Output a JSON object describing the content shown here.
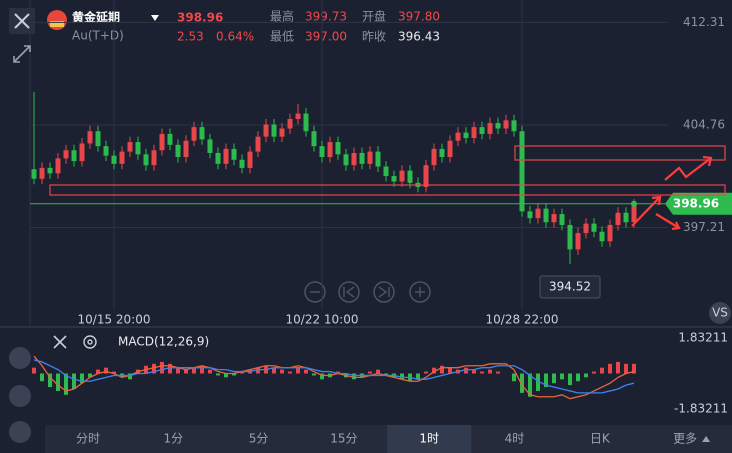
{
  "header": {
    "name": "黄金延期",
    "code": "Au(T+D)",
    "price": "398.96",
    "change": "2.53",
    "change_pct": "0.64%",
    "high_label": "最高",
    "high": "399.73",
    "open_label": "开盘",
    "open": "397.80",
    "low_label": "最低",
    "low": "397.00",
    "prev_close_label": "昨收",
    "prev_close": "396.43"
  },
  "chart_data": [
    {
      "type": "candlestick",
      "categories": [
        null,
        null,
        null,
        null,
        null,
        null,
        null,
        null,
        null,
        null,
        "10/15 20:00",
        null,
        null,
        null,
        null,
        null,
        null,
        null,
        null,
        null,
        null,
        null,
        null,
        null,
        null,
        null,
        null,
        null,
        null,
        null,
        null,
        null,
        null,
        null,
        null,
        null,
        "10/22 10:00",
        null,
        null,
        null,
        null,
        null,
        null,
        null,
        null,
        null,
        null,
        null,
        null,
        null,
        null,
        null,
        null,
        null,
        null,
        null,
        null,
        null,
        null,
        null,
        null,
        "10/28 22:00",
        null,
        null,
        null,
        null,
        null,
        null,
        null,
        null,
        null,
        null,
        null,
        null,
        null,
        null
      ],
      "ohlc": [
        [
          401.5,
          407.2,
          400.4,
          400.8
        ],
        [
          400.8,
          402.0,
          400.4,
          401.6
        ],
        [
          401.6,
          402.0,
          400.8,
          401.2
        ],
        [
          401.2,
          402.7,
          400.8,
          402.3
        ],
        [
          402.3,
          403.3,
          401.9,
          402.9
        ],
        [
          402.9,
          403.3,
          401.7,
          402.1
        ],
        [
          402.1,
          403.8,
          401.7,
          403.4
        ],
        [
          403.4,
          404.7,
          403.0,
          404.3
        ],
        [
          404.3,
          404.7,
          402.8,
          403.2
        ],
        [
          403.2,
          403.6,
          402.1,
          402.5
        ],
        [
          402.5,
          402.9,
          401.5,
          401.9
        ],
        [
          401.9,
          403.2,
          401.5,
          402.8
        ],
        [
          402.8,
          403.9,
          402.4,
          403.5
        ],
        [
          403.5,
          403.9,
          402.2,
          402.6
        ],
        [
          402.6,
          403.0,
          401.4,
          401.8
        ],
        [
          401.8,
          403.3,
          401.4,
          402.9
        ],
        [
          402.9,
          404.5,
          402.5,
          404.1
        ],
        [
          404.1,
          404.5,
          402.9,
          403.3
        ],
        [
          403.3,
          403.7,
          402.0,
          402.4
        ],
        [
          402.4,
          404.0,
          402.0,
          403.6
        ],
        [
          403.6,
          405.0,
          403.2,
          404.6
        ],
        [
          404.6,
          405.0,
          403.3,
          403.7
        ],
        [
          403.7,
          404.1,
          402.3,
          402.7
        ],
        [
          402.7,
          403.1,
          401.5,
          401.9
        ],
        [
          401.9,
          403.4,
          401.5,
          403.0
        ],
        [
          403.0,
          403.4,
          401.8,
          402.2
        ],
        [
          402.2,
          402.6,
          401.2,
          401.6
        ],
        [
          401.6,
          403.2,
          401.2,
          402.8
        ],
        [
          402.8,
          404.3,
          402.4,
          403.9
        ],
        [
          403.9,
          405.2,
          403.5,
          404.8
        ],
        [
          404.8,
          405.2,
          403.5,
          403.9
        ],
        [
          403.9,
          404.9,
          403.5,
          404.5
        ],
        [
          404.5,
          405.6,
          404.1,
          405.2
        ],
        [
          405.2,
          406.3,
          404.8,
          405.6
        ],
        [
          405.6,
          406.0,
          403.9,
          404.3
        ],
        [
          404.3,
          404.7,
          402.8,
          403.2
        ],
        [
          403.2,
          403.6,
          402.0,
          402.4
        ],
        [
          402.4,
          403.9,
          402.0,
          403.5
        ],
        [
          403.5,
          403.9,
          402.2,
          402.6
        ],
        [
          402.6,
          403.0,
          401.4,
          401.8
        ],
        [
          401.8,
          403.1,
          401.4,
          402.7
        ],
        [
          402.7,
          403.1,
          401.5,
          401.9
        ],
        [
          401.9,
          403.2,
          401.5,
          402.8
        ],
        [
          402.8,
          403.2,
          401.3,
          401.7
        ],
        [
          401.7,
          402.1,
          400.6,
          401.0
        ],
        [
          401.0,
          401.4,
          400.2,
          400.6
        ],
        [
          400.6,
          401.8,
          400.2,
          401.4
        ],
        [
          401.4,
          401.8,
          400.1,
          400.5
        ],
        [
          400.5,
          400.9,
          399.8,
          400.2
        ],
        [
          400.2,
          402.2,
          399.8,
          401.8
        ],
        [
          401.8,
          403.4,
          401.4,
          403.0
        ],
        [
          403.0,
          403.4,
          402.0,
          402.4
        ],
        [
          402.4,
          404.0,
          402.0,
          403.6
        ],
        [
          403.6,
          404.6,
          403.2,
          404.2
        ],
        [
          404.2,
          404.6,
          403.4,
          403.8
        ],
        [
          403.8,
          405.0,
          403.4,
          404.6
        ],
        [
          404.6,
          405.0,
          403.7,
          404.1
        ],
        [
          404.1,
          405.3,
          403.7,
          404.9
        ],
        [
          404.9,
          405.3,
          404.1,
          404.5
        ],
        [
          404.5,
          405.5,
          404.1,
          405.1
        ],
        [
          405.1,
          405.5,
          403.9,
          404.3
        ],
        [
          404.3,
          404.7,
          398.0,
          398.4
        ],
        [
          398.4,
          398.8,
          397.5,
          397.9
        ],
        [
          397.9,
          399.0,
          397.5,
          398.6
        ],
        [
          398.6,
          399.0,
          397.2,
          397.6
        ],
        [
          397.6,
          398.6,
          397.2,
          398.2
        ],
        [
          398.2,
          398.6,
          397.0,
          397.4
        ],
        [
          397.4,
          397.8,
          394.52,
          395.6
        ],
        [
          395.6,
          397.2,
          395.2,
          396.8
        ],
        [
          396.8,
          397.9,
          396.4,
          397.5
        ],
        [
          397.5,
          397.9,
          396.5,
          396.9
        ],
        [
          396.9,
          397.3,
          395.8,
          396.2
        ],
        [
          396.2,
          397.8,
          395.8,
          397.4
        ],
        [
          397.4,
          398.7,
          397.0,
          398.3
        ],
        [
          398.3,
          398.7,
          397.2,
          397.6
        ],
        [
          397.6,
          399.3,
          397.2,
          398.96
        ]
      ],
      "up_color": "#e8464a",
      "down_color": "#2dbb4e",
      "ylim": [
        391.14,
        413.96
      ],
      "yticks": [
        397.21,
        404.76,
        412.31
      ],
      "grid": true
    },
    {
      "type": "macd",
      "title": "MACD(12,26,9)",
      "histogram": [
        0.3,
        -0.4,
        -0.7,
        -0.9,
        -1.1,
        -0.8,
        -0.5,
        -0.2,
        0.2,
        0.3,
        0.1,
        -0.2,
        -0.3,
        0.2,
        0.4,
        0.5,
        0.6,
        0.5,
        0.3,
        0.2,
        0.3,
        0.4,
        0.2,
        -0.1,
        -0.2,
        -0.1,
        0.1,
        0.2,
        0.3,
        0.4,
        0.3,
        0.2,
        0.1,
        0.3,
        0.2,
        -0.1,
        -0.3,
        -0.2,
        0.1,
        -0.2,
        -0.3,
        -0.2,
        0.1,
        0.2,
        -0.1,
        -0.2,
        -0.3,
        -0.4,
        -0.3,
        0.1,
        0.3,
        0.4,
        0.3,
        0.2,
        0.3,
        0.2,
        0.1,
        0.2,
        0.1,
        0.0,
        -0.4,
        -1.0,
        -1.2,
        -0.9,
        -0.7,
        -0.5,
        -0.3,
        -0.6,
        -0.4,
        -0.2,
        0.1,
        0.3,
        0.5,
        0.6,
        0.5,
        0.5
      ],
      "series": [
        {
          "color": "#e8663c",
          "values": [
            0.9,
            0.4,
            -0.2,
            -0.6,
            -0.9,
            -0.8,
            -0.5,
            -0.2,
            0.0,
            0.1,
            0.0,
            -0.2,
            -0.1,
            0.1,
            0.2,
            0.3,
            0.4,
            0.4,
            0.3,
            0.2,
            0.3,
            0.4,
            0.3,
            0.1,
            0.0,
            0.0,
            0.1,
            0.2,
            0.3,
            0.4,
            0.4,
            0.3,
            0.3,
            0.4,
            0.3,
            0.1,
            -0.1,
            -0.1,
            0.0,
            -0.1,
            -0.2,
            -0.2,
            -0.1,
            0.0,
            -0.1,
            -0.2,
            -0.3,
            -0.4,
            -0.4,
            -0.2,
            0.1,
            0.3,
            0.3,
            0.3,
            0.4,
            0.4,
            0.4,
            0.5,
            0.5,
            0.5,
            0.2,
            -0.6,
            -1.1,
            -1.2,
            -1.2,
            -1.2,
            -1.1,
            -1.3,
            -1.2,
            -1.1,
            -0.9,
            -0.7,
            -0.5,
            -0.2,
            0.0,
            0.1
          ]
        },
        {
          "color": "#3f82ee",
          "values": [
            0.7,
            0.6,
            0.4,
            0.2,
            -0.1,
            -0.3,
            -0.4,
            -0.4,
            -0.3,
            -0.2,
            -0.1,
            -0.1,
            -0.1,
            0.0,
            0.0,
            0.1,
            0.2,
            0.3,
            0.3,
            0.3,
            0.3,
            0.3,
            0.3,
            0.2,
            0.2,
            0.1,
            0.1,
            0.1,
            0.2,
            0.2,
            0.3,
            0.3,
            0.3,
            0.3,
            0.3,
            0.2,
            0.1,
            0.1,
            0.0,
            0.0,
            -0.1,
            -0.1,
            -0.1,
            -0.1,
            -0.1,
            -0.1,
            -0.2,
            -0.2,
            -0.3,
            -0.3,
            -0.2,
            -0.1,
            0.0,
            0.1,
            0.2,
            0.2,
            0.3,
            0.3,
            0.4,
            0.4,
            0.4,
            0.2,
            -0.1,
            -0.4,
            -0.6,
            -0.7,
            -0.8,
            -0.9,
            -1.0,
            -1.0,
            -1.0,
            -1.0,
            -0.9,
            -0.8,
            -0.6,
            -0.5
          ]
        }
      ],
      "ylim": [
        -1.83211,
        1.83211
      ],
      "yticks": [
        1.83211,
        -1.83211
      ],
      "grid": false,
      "up_color": "#e8464a",
      "down_color": "#2dbb4e"
    }
  ],
  "tabs": [
    "分时",
    "1分",
    "5分",
    "15分",
    "1时",
    "4时",
    "日K",
    "更多"
  ],
  "selected_tab": 4
}
